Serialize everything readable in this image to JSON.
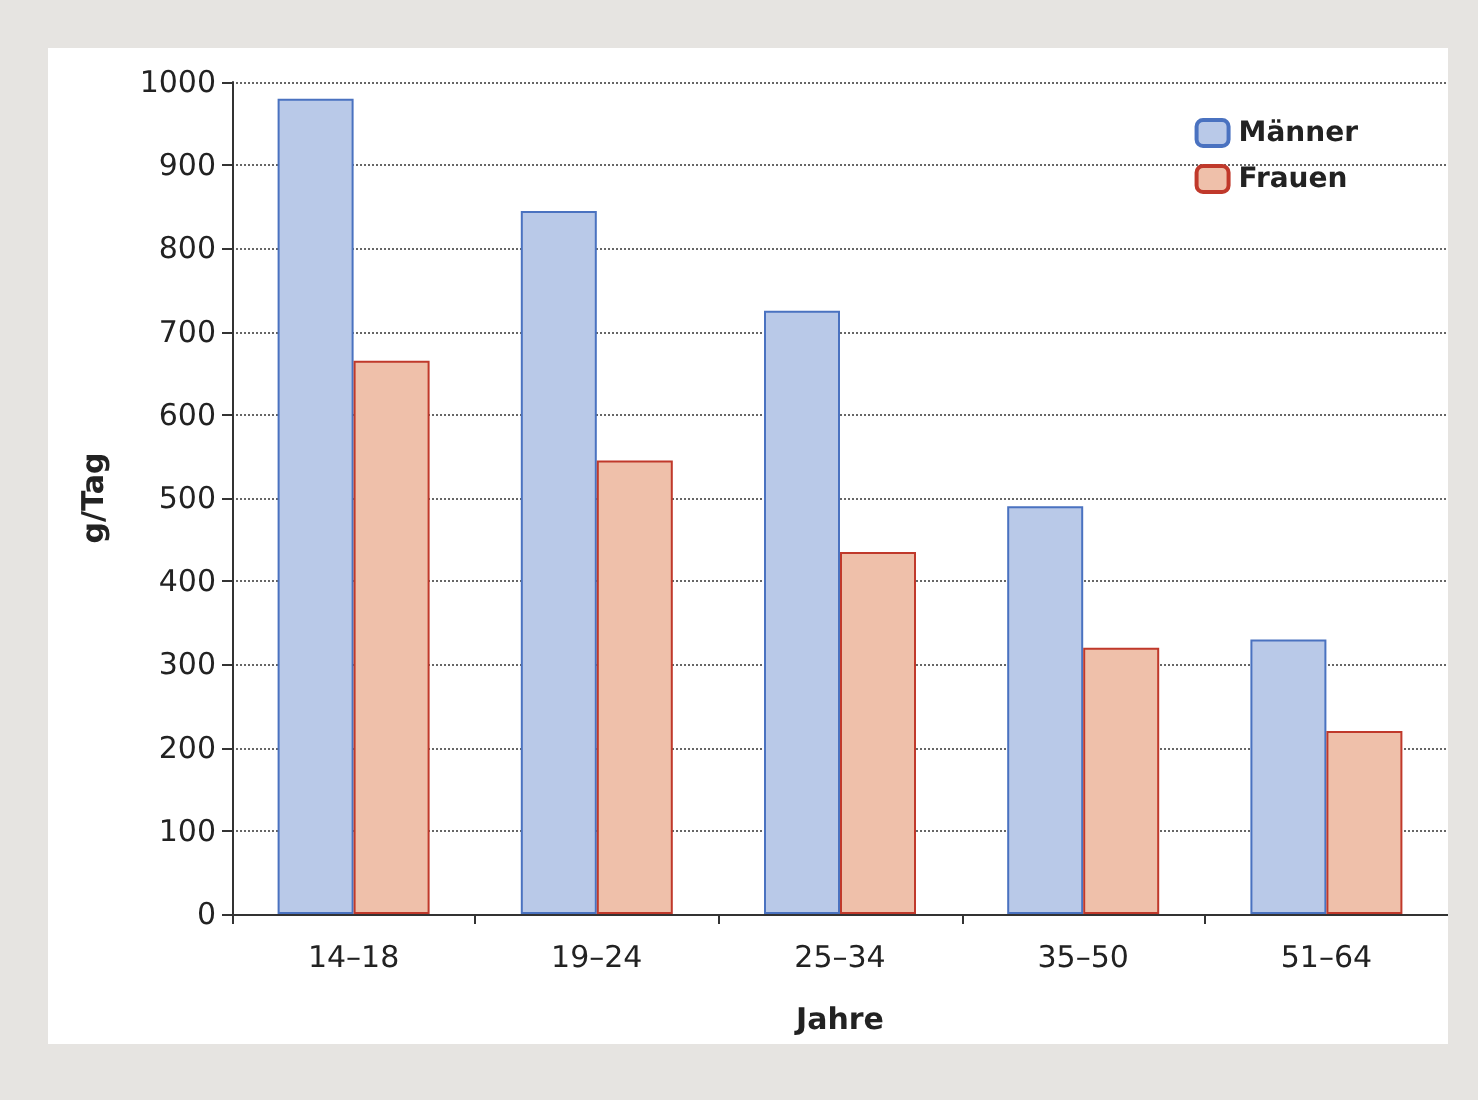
{
  "chart_data": {
    "type": "bar",
    "xlabel": "Jahre",
    "ylabel": "g/Tag",
    "categories": [
      "14–18",
      "19–24",
      "25–34",
      "35–50",
      "51–64"
    ],
    "series": [
      {
        "name": "Männer",
        "color": "#b9c9e8",
        "values": [
          980,
          845,
          725,
          490,
          330
        ]
      },
      {
        "name": "Frauen",
        "color": "#efc0aa",
        "values": [
          665,
          545,
          435,
          320,
          220
        ]
      }
    ],
    "ylim": [
      0,
      1000
    ],
    "yticks": [
      0,
      100,
      200,
      300,
      400,
      500,
      600,
      700,
      800,
      900,
      1000
    ],
    "grid": "y",
    "legend": "top right"
  }
}
